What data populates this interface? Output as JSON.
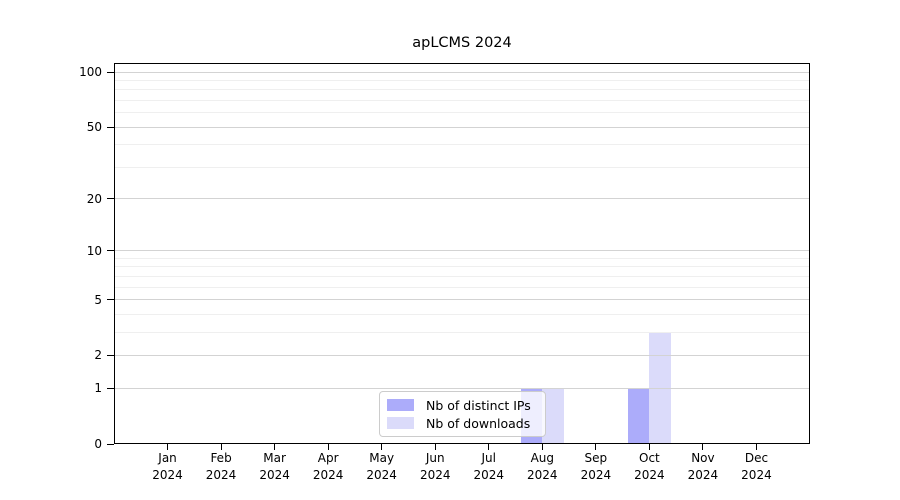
{
  "title": "apLCMS 2024",
  "colors": {
    "distinct_ips": "#acacfa",
    "downloads": "#dbdbfa",
    "grid_major": "#d3d3d3",
    "grid_minor": "#efefef",
    "axis": "#000000",
    "legend_border": "#cccccc"
  },
  "legend": {
    "items": [
      {
        "key": "distinct_ips",
        "label": "Nb of distinct IPs"
      },
      {
        "key": "downloads",
        "label": "Nb of downloads"
      }
    ],
    "position": "lower center"
  },
  "chart_data": {
    "type": "bar",
    "title": "apLCMS 2024",
    "categories": [
      "Jan",
      "Feb",
      "Mar",
      "Apr",
      "May",
      "Jun",
      "Jul",
      "Aug",
      "Sep",
      "Oct",
      "Nov",
      "Dec"
    ],
    "year_label": "2024",
    "series": [
      {
        "name": "Nb of distinct IPs",
        "key": "distinct_ips",
        "values": [
          0,
          0,
          0,
          0,
          0,
          0,
          0,
          1,
          0,
          1,
          0,
          0
        ]
      },
      {
        "name": "Nb of downloads",
        "key": "downloads",
        "values": [
          0,
          0,
          0,
          0,
          0,
          0,
          0,
          1,
          0,
          3,
          0,
          0
        ]
      }
    ],
    "xlabel": "",
    "ylabel": "",
    "yscale": "log1p",
    "ylim": [
      0,
      112
    ],
    "yticks_major": [
      0,
      1,
      2,
      5,
      10,
      20,
      50,
      100
    ],
    "yticks_minor": [
      3,
      4,
      6,
      7,
      8,
      9,
      30,
      40,
      60,
      70,
      80,
      90
    ],
    "grid": "horizontal",
    "legend_position": "lower center"
  }
}
